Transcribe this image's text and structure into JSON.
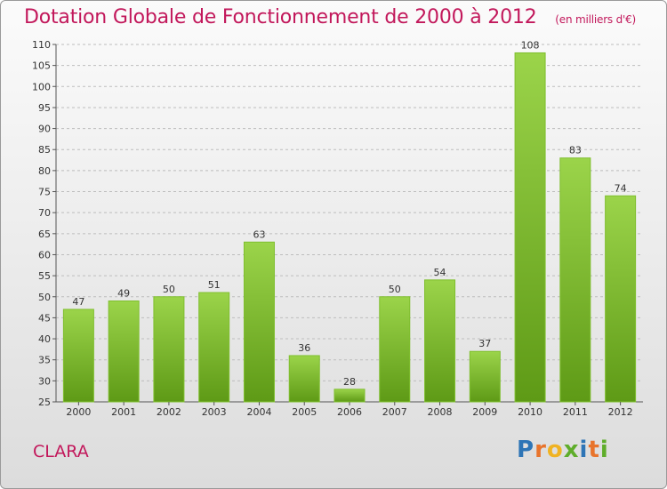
{
  "title": "Dotation Globale de Fonctionnement de 2000 à 2012",
  "subtitle": "(en milliers d'€)",
  "commune": "CLARA",
  "brand": {
    "letters": [
      "P",
      "r",
      "o",
      "x",
      "i",
      "t",
      "i"
    ],
    "colors": [
      "#2e75b6",
      "#e8742c",
      "#f0b323",
      "#5fad2b",
      "#2e75b6",
      "#e8742c",
      "#5fad2b"
    ]
  },
  "colors": {
    "title": "#c2185b",
    "bar_top": "#9bd44a",
    "bar_bottom": "#5e9a16"
  },
  "chart_data": {
    "type": "bar",
    "title": "Dotation Globale de Fonctionnement de 2000 à 2012",
    "xlabel": "",
    "ylabel": "",
    "categories": [
      "2000",
      "2001",
      "2002",
      "2003",
      "2004",
      "2005",
      "2006",
      "2007",
      "2008",
      "2009",
      "2010",
      "2011",
      "2012"
    ],
    "values": [
      47,
      49,
      50,
      51,
      63,
      36,
      28,
      50,
      54,
      37,
      108,
      83,
      74
    ],
    "ylim": [
      25,
      110
    ],
    "ytick_step": 5,
    "grid": true,
    "data_labels": true
  }
}
